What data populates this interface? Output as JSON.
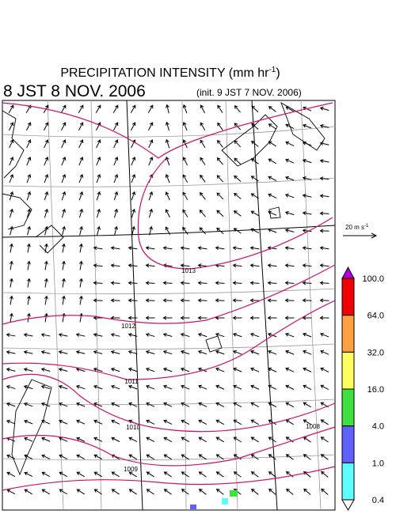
{
  "title": {
    "text": "PRECIPITATION INTENSITY (mm hr",
    "exponent": "-1",
    "close": ")"
  },
  "valid_time": "8 JST 8 NOV. 2006",
  "init_time": "(init. 9 JST 7 NOV. 2006)",
  "wind_scale": {
    "text": "20 m s",
    "exponent": "-1"
  },
  "isobars": [
    {
      "label": "1013"
    },
    {
      "label": "1012"
    },
    {
      "label": "1011"
    },
    {
      "label": "1010"
    },
    {
      "label": "1009"
    },
    {
      "label": "1008"
    }
  ],
  "colorbar": {
    "labels": [
      "100.0",
      "64.0",
      "32.0",
      "16.0",
      "4.0",
      "1.0",
      "0.4"
    ],
    "colors": [
      "#b000e0",
      "#f00000",
      "#ffa040",
      "#ffff60",
      "#40e040",
      "#6060ff",
      "#60ffff",
      "#ffffff"
    ]
  }
}
